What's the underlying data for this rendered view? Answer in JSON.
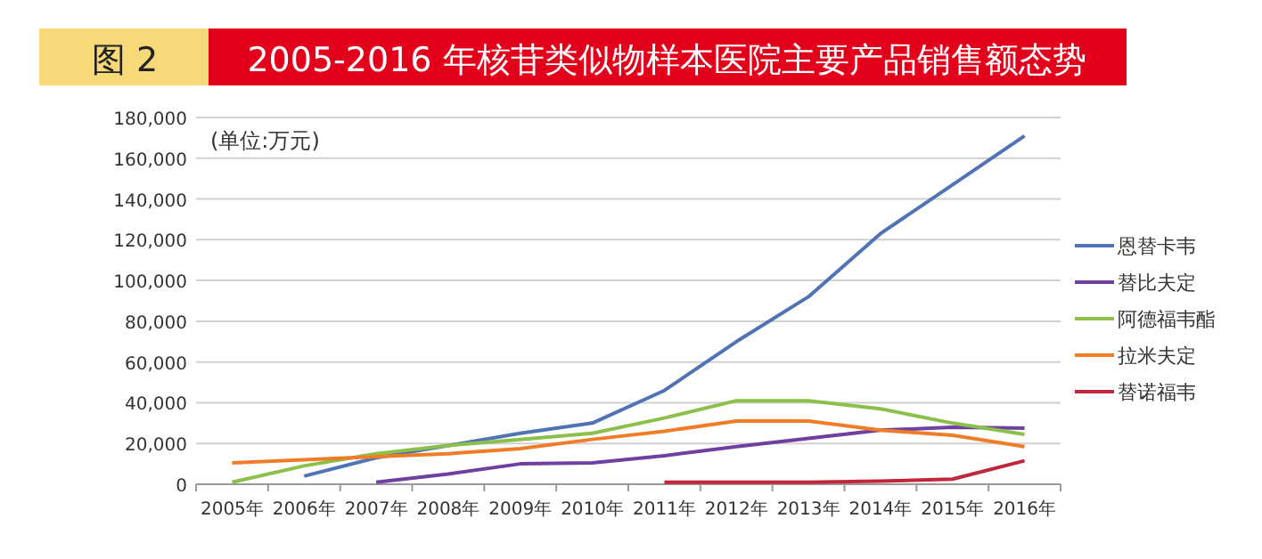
{
  "chart_data": {
    "type": "line",
    "title": "2005-2016 年核苷类似物样本医院主要产品销售额态势",
    "annotations": [
      "图 2",
      "(单位:万元)"
    ],
    "categories": [
      "2005年",
      "2006年",
      "2007年",
      "2008年",
      "2009年",
      "2010年",
      "2011年",
      "2012年",
      "2013年",
      "2014年",
      "2015年",
      "2016年"
    ],
    "series": [
      {
        "name": "恩替卡韦",
        "color": "#4f73b4",
        "values": [
          null,
          4000,
          13000,
          19000,
          25000,
          30000,
          46000,
          70000,
          92000,
          123000,
          147000,
          171000
        ]
      },
      {
        "name": "替比夫定",
        "color": "#7040a0",
        "values": [
          null,
          null,
          1000,
          5000,
          10000,
          10500,
          14000,
          18500,
          22500,
          26500,
          28000,
          27500
        ]
      },
      {
        "name": "阿德福韦酯",
        "color": "#8cc04a",
        "values": [
          1000,
          9000,
          15000,
          19000,
          22000,
          25000,
          32500,
          41000,
          41000,
          37000,
          30000,
          24500
        ]
      },
      {
        "name": "拉米夫定",
        "color": "#f07c28",
        "values": [
          10500,
          12000,
          13500,
          15000,
          17500,
          22000,
          26000,
          31000,
          31000,
          26500,
          24000,
          18500
        ]
      },
      {
        "name": "替诺福韦",
        "color": "#c0263c",
        "values": [
          null,
          null,
          null,
          null,
          null,
          null,
          1000,
          1000,
          1000,
          1500,
          2500,
          11500
        ]
      }
    ],
    "ylim": [
      0,
      180000
    ],
    "yticks": [
      {
        "value": 0,
        "label": "0"
      },
      {
        "value": 20000,
        "label": "20,000"
      },
      {
        "value": 40000,
        "label": "40,000"
      },
      {
        "value": 60000,
        "label": "60,000"
      },
      {
        "value": 80000,
        "label": "80,000"
      },
      {
        "value": 100000,
        "label": "100,000"
      },
      {
        "value": 120000,
        "label": "120,000"
      },
      {
        "value": 140000,
        "label": "140,000"
      },
      {
        "value": 160000,
        "label": "160,000"
      },
      {
        "value": 180000,
        "label": "180,000"
      }
    ],
    "grid": "y",
    "legend": "right",
    "marker": "none",
    "line_style": "solid"
  }
}
